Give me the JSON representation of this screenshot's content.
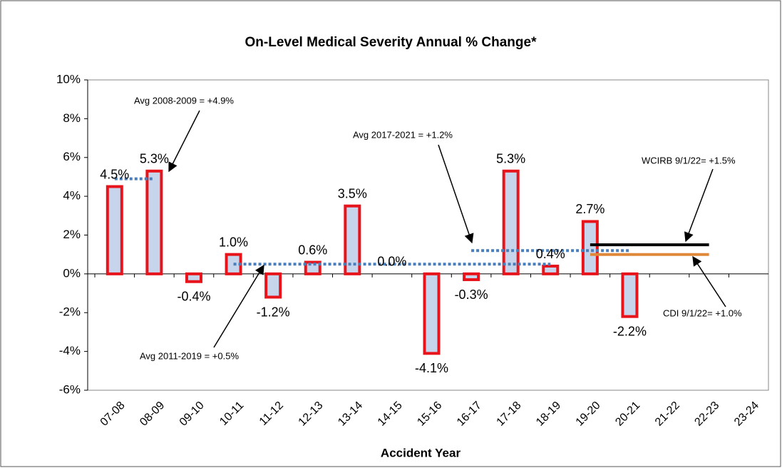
{
  "chart_data": {
    "type": "bar",
    "title": "On-Level Medical Severity Annual % Change*",
    "x_label": "Accident Year",
    "categories": [
      "07-08",
      "08-09",
      "09-10",
      "10-11",
      "11-12",
      "12-13",
      "13-14",
      "14-15",
      "15-16",
      "16-17",
      "17-18",
      "18-19",
      "19-20",
      "20-21",
      "21-22",
      "22-23",
      "23-24"
    ],
    "values": [
      4.5,
      5.3,
      -0.4,
      1.0,
      -1.2,
      0.6,
      3.5,
      0.0,
      -4.1,
      -0.3,
      5.3,
      0.4,
      2.7,
      -2.2,
      null,
      null,
      null
    ],
    "value_labels": [
      "4.5%",
      "5.3%",
      "-0.4%",
      "1.0%",
      "-1.2%",
      "0.6%",
      "3.5%",
      "0.0%",
      "-4.1%",
      "-0.3%",
      "5.3%",
      "0.4%",
      "2.7%",
      "-2.2%",
      null,
      null,
      null
    ],
    "color": "#c6d5ec",
    "edge_color": "#e8141b",
    "ylim": [
      -6,
      10
    ],
    "yticks": [
      {
        "value": -6,
        "label": "-6%"
      },
      {
        "value": -4,
        "label": "-4%"
      },
      {
        "value": -2,
        "label": "-2%"
      },
      {
        "value": 0,
        "label": "0%"
      },
      {
        "value": 2,
        "label": "2%"
      },
      {
        "value": 4,
        "label": "4%"
      },
      {
        "value": 6,
        "label": "6%"
      },
      {
        "value": 8,
        "label": "8%"
      },
      {
        "value": 10,
        "label": "10%"
      }
    ],
    "reference_lines": [
      {
        "label": "Avg 2008-2009 = +4.9%",
        "value": 4.9,
        "start": "07-08",
        "end": "08-09",
        "color": "#4a7ebb",
        "style": "dotted"
      },
      {
        "label": "Avg 2011-2019 = +0.5%",
        "value": 0.5,
        "start": "10-11",
        "end": "18-19",
        "color": "#4a7ebb",
        "style": "dotted"
      },
      {
        "label": "Avg 2017-2021 = +1.2%",
        "value": 1.2,
        "start": "16-17",
        "end": "20-21",
        "color": "#4a7ebb",
        "style": "dotted"
      },
      {
        "label": "WCIRB 9/1/22= +1.5%",
        "value": 1.5,
        "start": "19-20",
        "end": "22-23",
        "color": "#000000",
        "style": "solid"
      },
      {
        "label": "CDI 9/1/22= +1.0%",
        "value": 1.0,
        "start": "19-20",
        "end": "22-23",
        "color": "#e0883a",
        "style": "solid"
      }
    ]
  }
}
